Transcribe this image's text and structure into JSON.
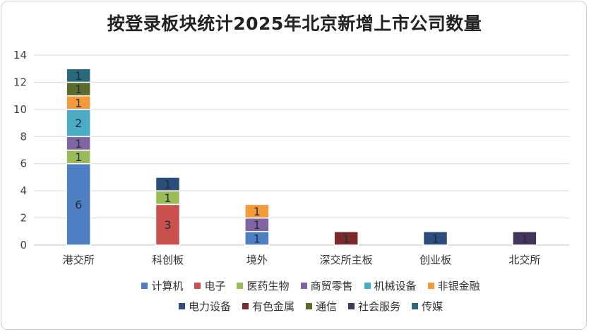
{
  "chart_data": {
    "type": "bar",
    "stacked": true,
    "title": "按登录板块统计2025年北京新增上市公司数量",
    "xlabel": "",
    "ylabel": "",
    "ylim": [
      0,
      14
    ],
    "yticks": [
      0,
      2,
      4,
      6,
      8,
      10,
      12,
      14
    ],
    "categories": [
      "港交所",
      "科创板",
      "境外",
      "深交所主板",
      "创业板",
      "北交所"
    ],
    "series": [
      {
        "name": "计算机",
        "color": "#4f7fc3",
        "values": [
          6,
          0,
          1,
          0,
          0,
          0
        ]
      },
      {
        "name": "电子",
        "color": "#c9504d",
        "values": [
          0,
          3,
          0,
          0,
          0,
          0
        ]
      },
      {
        "name": "医药生物",
        "color": "#9bbb59",
        "values": [
          1,
          1,
          0,
          0,
          0,
          0
        ]
      },
      {
        "name": "商贸零售",
        "color": "#8165a2",
        "values": [
          1,
          0,
          1,
          0,
          0,
          0
        ]
      },
      {
        "name": "机械设备",
        "color": "#4bacc6",
        "values": [
          2,
          0,
          0,
          0,
          0,
          0
        ]
      },
      {
        "name": "非银金融",
        "color": "#f59a3a",
        "values": [
          1,
          0,
          1,
          0,
          0,
          0
        ]
      },
      {
        "name": "电力设备",
        "color": "#2c4e7a",
        "values": [
          0,
          1,
          0,
          0,
          1,
          0
        ]
      },
      {
        "name": "有色金属",
        "color": "#7a2a2a",
        "values": [
          0,
          0,
          0,
          1,
          0,
          0
        ]
      },
      {
        "name": "通信",
        "color": "#5a6b2a",
        "values": [
          1,
          0,
          0,
          0,
          0,
          0
        ]
      },
      {
        "name": "社会服务",
        "color": "#43355c",
        "values": [
          0,
          0,
          0,
          0,
          0,
          1
        ]
      },
      {
        "name": "传媒",
        "color": "#2a6a7e",
        "values": [
          1,
          0,
          0,
          0,
          0,
          0
        ]
      }
    ],
    "data_labels_shown": true,
    "legend_position": "bottom"
  }
}
